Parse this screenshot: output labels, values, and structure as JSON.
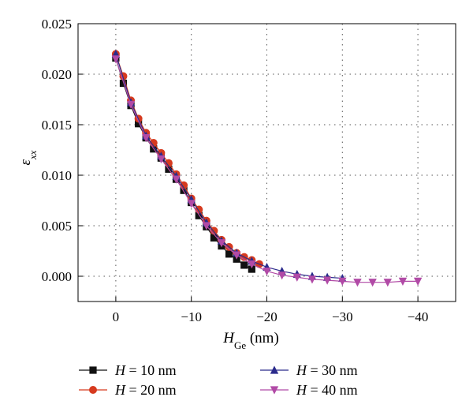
{
  "chart_data": {
    "type": "line",
    "title": "",
    "xlabel": {
      "main": "H",
      "sub": "Ge",
      "unit": " (nm)"
    },
    "ylabel": {
      "main": "ε",
      "sub": "xx"
    },
    "xlim": [
      5,
      -45
    ],
    "ylim": [
      -0.0025,
      0.025
    ],
    "x_ticks": [
      0,
      -10,
      -20,
      -30,
      -40
    ],
    "x_tick_labels": [
      "0",
      "−10",
      "−20",
      "−30",
      "−40"
    ],
    "y_ticks": [
      0.0,
      0.005,
      0.01,
      0.015,
      0.02,
      0.025
    ],
    "y_tick_labels": [
      "0.000",
      "0.005",
      "0.010",
      "0.015",
      "0.020",
      "0.025"
    ],
    "grid": "dotted",
    "legend_position": "bottom",
    "series": [
      {
        "name": "H = 10 nm",
        "label_var": "H",
        "label_rest": " = 10 nm",
        "color": "#111111",
        "marker": "square",
        "x": [
          0,
          -1,
          -2,
          -3,
          -4,
          -5,
          -6,
          -7,
          -8,
          -9,
          -10,
          -11,
          -12,
          -13,
          -14,
          -15,
          -16,
          -17,
          -18
        ],
        "y": [
          0.0216,
          0.0191,
          0.0169,
          0.0151,
          0.0137,
          0.0126,
          0.0117,
          0.0106,
          0.0096,
          0.0085,
          0.0073,
          0.006,
          0.0049,
          0.0038,
          0.003,
          0.0022,
          0.0017,
          0.0011,
          0.0007
        ]
      },
      {
        "name": "H = 20 nm",
        "label_var": "H",
        "label_rest": " = 20 nm",
        "color": "#d63a1f",
        "marker": "circle",
        "x": [
          0,
          -1,
          -2,
          -3,
          -4,
          -5,
          -6,
          -7,
          -8,
          -9,
          -10,
          -11,
          -12,
          -13,
          -14,
          -15,
          -16,
          -17,
          -18,
          -19
        ],
        "y": [
          0.022,
          0.0198,
          0.0174,
          0.0156,
          0.0142,
          0.0132,
          0.0122,
          0.0112,
          0.0101,
          0.009,
          0.0077,
          0.0066,
          0.0055,
          0.0045,
          0.0036,
          0.0029,
          0.0023,
          0.0019,
          0.0016,
          0.0012
        ]
      },
      {
        "name": "H = 30 nm",
        "label_var": "H",
        "label_rest": " = 30 nm",
        "color": "#2b2b8c",
        "marker": "triangle-up",
        "x": [
          0,
          -2,
          -4,
          -6,
          -8,
          -10,
          -12,
          -14,
          -16,
          -18,
          -20,
          -22,
          -24,
          -26,
          -28,
          -30
        ],
        "y": [
          0.022,
          0.0172,
          0.0139,
          0.0119,
          0.0099,
          0.0076,
          0.0053,
          0.0035,
          0.0023,
          0.0015,
          0.0009,
          0.0005,
          0.0002,
          0.0,
          -0.0001,
          -0.0002
        ]
      },
      {
        "name": "H = 40 nm",
        "label_var": "H",
        "label_rest": " = 40 nm",
        "color": "#b14aa6",
        "marker": "triangle-down",
        "x": [
          0,
          -2,
          -4,
          -6,
          -8,
          -10,
          -12,
          -14,
          -16,
          -18,
          -20,
          -22,
          -24,
          -26,
          -28,
          -30,
          -32,
          -34,
          -36,
          -38,
          -40
        ],
        "y": [
          0.0215,
          0.017,
          0.0137,
          0.0116,
          0.0096,
          0.0072,
          0.005,
          0.0033,
          0.0021,
          0.0012,
          0.0005,
          0.0001,
          -0.0001,
          -0.0003,
          -0.0004,
          -0.0005,
          -0.0006,
          -0.0006,
          -0.0006,
          -0.0005,
          -0.0005
        ]
      }
    ]
  }
}
